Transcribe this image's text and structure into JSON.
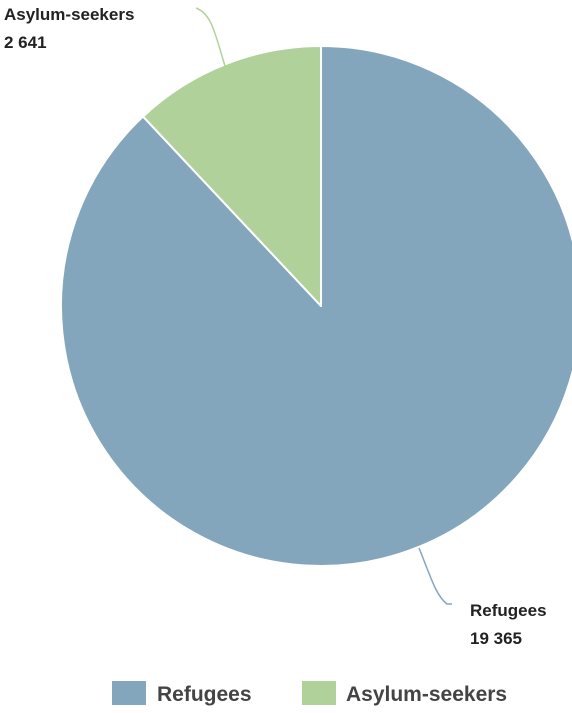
{
  "chart_data": {
    "type": "pie",
    "title": "",
    "slices": [
      {
        "name": "Refugees",
        "label": "Refugees",
        "value_label": "19 365",
        "value": 19365,
        "color": "#84a6bc"
      },
      {
        "name": "Asylum-seekers",
        "label": "Asylum-seekers",
        "value_label": "2 641",
        "value": 2641,
        "color": "#b0d29a"
      }
    ],
    "legend": {
      "position": "bottom",
      "items": [
        "Refugees",
        "Asylum-seekers"
      ]
    }
  }
}
